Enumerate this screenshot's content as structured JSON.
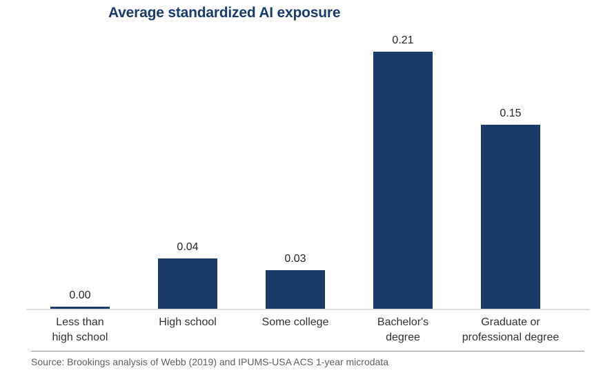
{
  "chart_data": {
    "type": "bar",
    "title": "Average standardized AI exposure",
    "categories": [
      "Less than\nhigh school",
      "High school",
      "Some college",
      "Bachelor's\ndegree",
      "Graduate or\nprofessional degree"
    ],
    "values": [
      0.0,
      0.04,
      0.03,
      0.21,
      0.15
    ],
    "value_labels": [
      "0.00",
      "0.04",
      "0.03",
      "0.21",
      "0.15"
    ],
    "xlabel": "",
    "ylabel": "",
    "ylim": [
      0,
      0.22
    ],
    "grid": false,
    "legend": "none",
    "bar_color": "#1a3a6a",
    "title_color": "#193c6d"
  },
  "footer": {
    "source": "Source: Brookings analysis of Webb (2019) and IPUMS-USA ACS 1-year microdata"
  }
}
